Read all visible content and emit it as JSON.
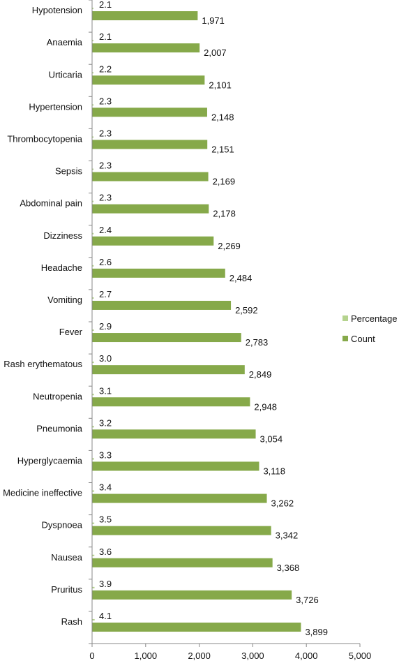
{
  "chart_data": {
    "type": "bar",
    "orientation": "horizontal",
    "categories": [
      "Hypotension",
      "Anaemia",
      "Urticaria",
      "Hypertension",
      "Thrombocytopenia",
      "Sepsis",
      "Abdominal pain",
      "Dizziness",
      "Headache",
      "Vomiting",
      "Fever",
      "Rash erythematous",
      "Neutropenia",
      "Pneumonia",
      "Hyperglycaemia",
      "Medicine ineffective",
      "Dyspnoea",
      "Nausea",
      "Pruritus",
      "Rash"
    ],
    "series": [
      {
        "name": "Percentage",
        "color": "#b5d38e",
        "values": [
          2.1,
          2.1,
          2.2,
          2.3,
          2.3,
          2.3,
          2.3,
          2.4,
          2.6,
          2.7,
          2.9,
          3.0,
          3.1,
          3.2,
          3.3,
          3.4,
          3.5,
          3.6,
          3.9,
          4.1
        ],
        "labels": [
          "2.1",
          "2.1",
          "2.2",
          "2.3",
          "2.3",
          "2.3",
          "2.3",
          "2.4",
          "2.6",
          "2.7",
          "2.9",
          "3.0",
          "3.1",
          "3.2",
          "3.3",
          "3.4",
          "3.5",
          "3.6",
          "3.9",
          "4.1"
        ]
      },
      {
        "name": "Count",
        "color": "#86a94a",
        "values": [
          1971,
          2007,
          2101,
          2148,
          2151,
          2169,
          2178,
          2269,
          2484,
          2592,
          2783,
          2849,
          2948,
          3054,
          3118,
          3262,
          3342,
          3368,
          3726,
          3899
        ],
        "labels": [
          "1,971",
          "2,007",
          "2,101",
          "2,148",
          "2,151",
          "2,169",
          "2,178",
          "2,269",
          "2,484",
          "2,592",
          "2,783",
          "2,849",
          "2,948",
          "3,054",
          "3,118",
          "3,262",
          "3,342",
          "3,368",
          "3,726",
          "3,899"
        ]
      }
    ],
    "xlim": [
      0,
      5000
    ],
    "xticks": [
      0,
      1000,
      2000,
      3000,
      4000,
      5000
    ],
    "xtick_labels": [
      "0",
      "1,000",
      "2,000",
      "3,000",
      "4,000",
      "5,000"
    ],
    "legend_position": "right",
    "grid": false
  }
}
